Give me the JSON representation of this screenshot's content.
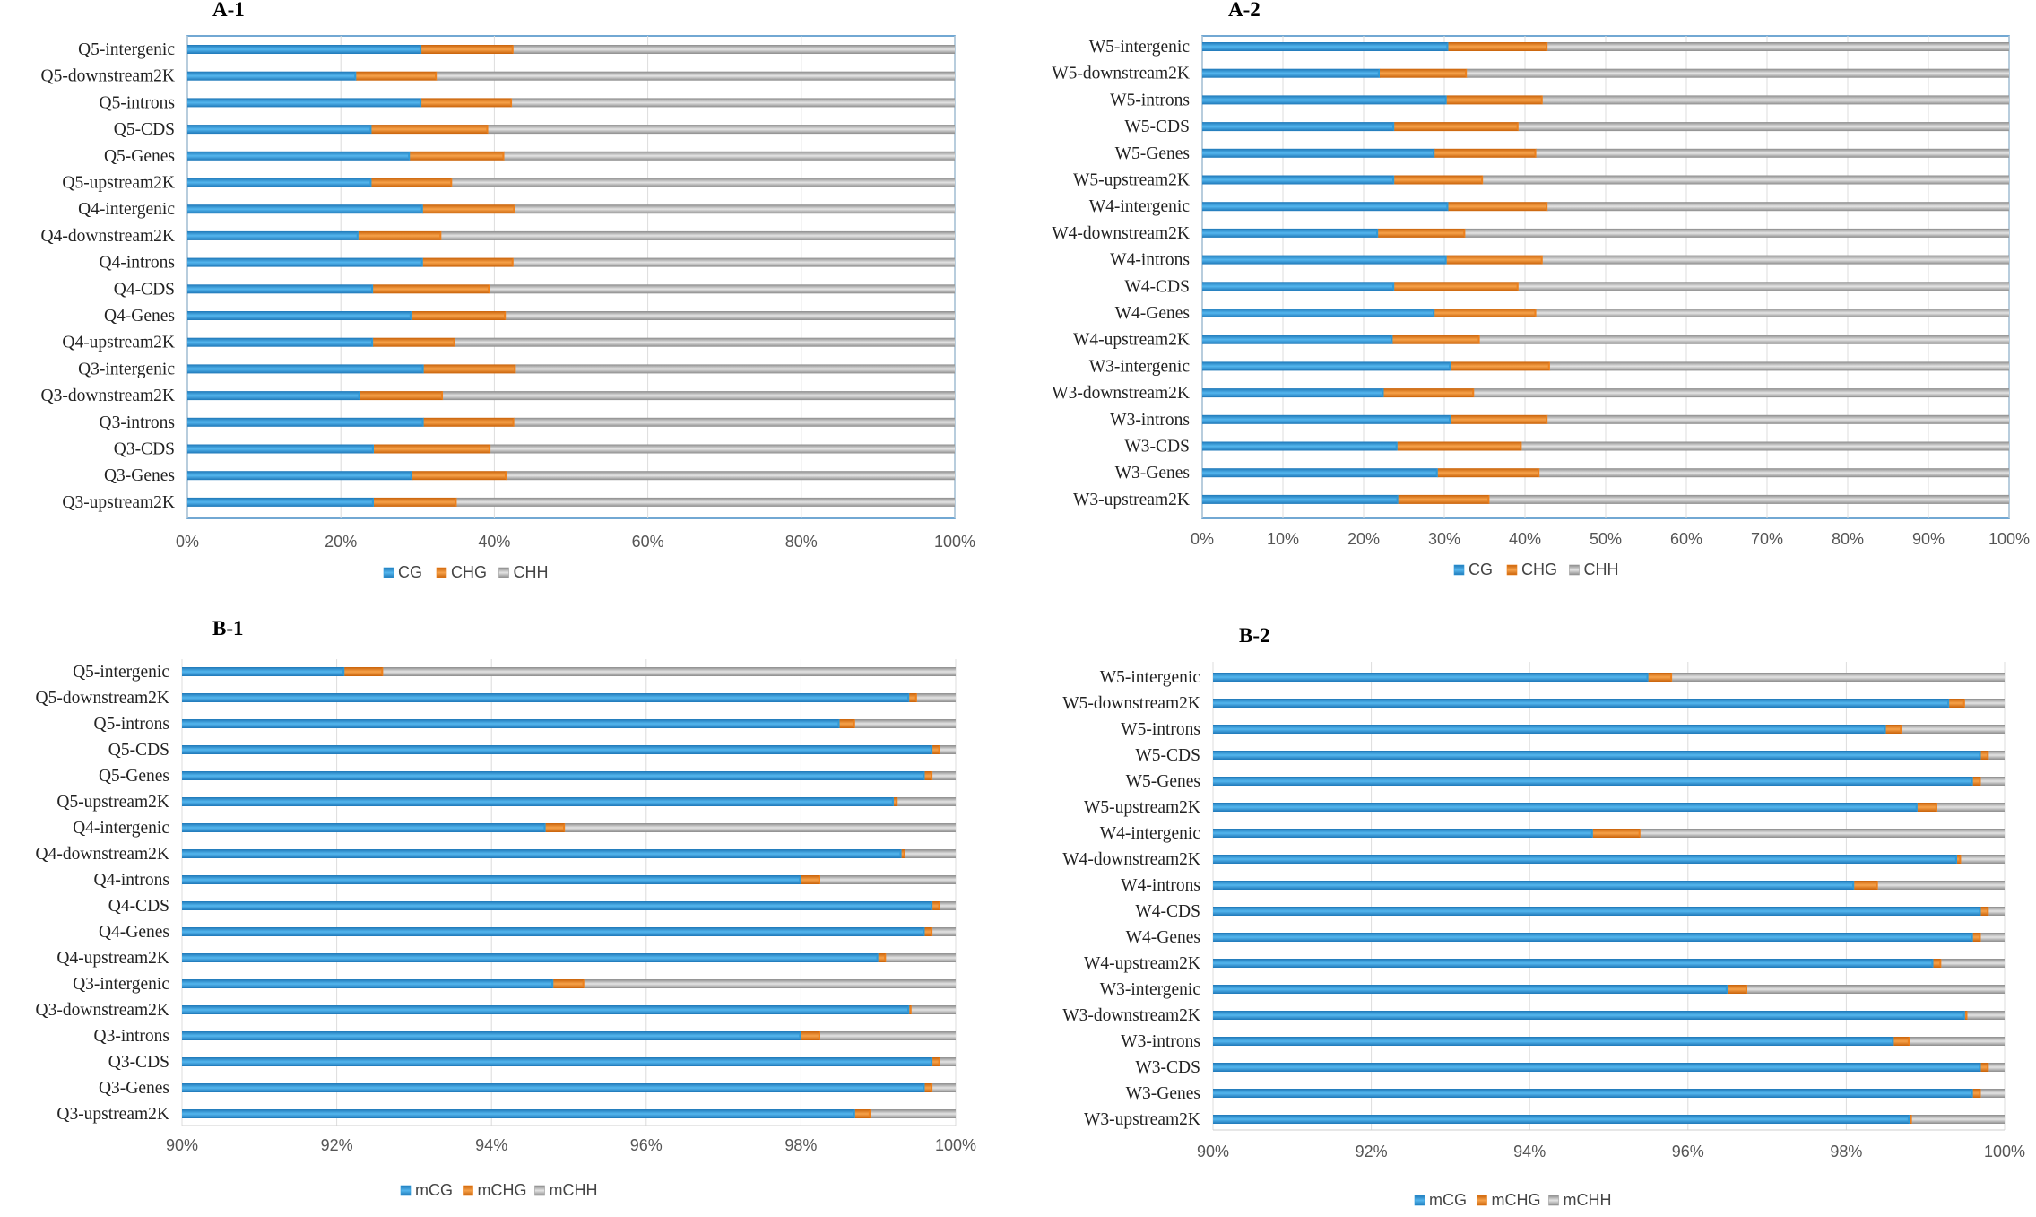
{
  "colors": {
    "cg": "#2e9ad9",
    "chg": "#ee8019",
    "chh": "#9a9a9a",
    "frame": "#4f93c8",
    "grid": "#dcdcdc"
  },
  "panels": [
    {
      "title": "A-1"
    },
    {
      "title": "A-2"
    },
    {
      "title": "B-1"
    },
    {
      "title": "B-2"
    }
  ],
  "chart_data": [
    {
      "id": "A-1",
      "type": "bar",
      "orientation": "horizontal",
      "stacked": "percent",
      "title": "A-1",
      "xlim": [
        0,
        100
      ],
      "xticks": [
        0,
        20,
        40,
        60,
        80,
        100
      ],
      "xtick_labels": [
        "0%",
        "20%",
        "40%",
        "60%",
        "80%",
        "100%"
      ],
      "categories": [
        "Q5-intergenic",
        "Q5-downstream2K",
        "Q5-introns",
        "Q5-CDS",
        "Q5-Genes",
        "Q5-upstream2K",
        "Q4-intergenic",
        "Q4-downstream2K",
        "Q4-introns",
        "Q4-CDS",
        "Q4-Genes",
        "Q4-upstream2K",
        "Q3-intergenic",
        "Q3-downstream2K",
        "Q3-introns",
        "Q3-CDS",
        "Q3-Genes",
        "Q3-upstream2K"
      ],
      "series": [
        {
          "name": "CG",
          "values": [
            30.5,
            22,
            30.5,
            24,
            29,
            24,
            30.7,
            22.3,
            30.7,
            24.2,
            29.2,
            24.2,
            30.8,
            22.5,
            30.8,
            24.3,
            29.3,
            24.3
          ]
        },
        {
          "name": "CHG",
          "values": [
            12,
            10.5,
            11.8,
            15.2,
            12.3,
            10.5,
            12,
            10.8,
            11.8,
            15.2,
            12.3,
            10.7,
            12,
            10.8,
            11.8,
            15.2,
            12.3,
            10.8
          ]
        },
        {
          "name": "CHH",
          "values": [
            57.5,
            67.5,
            57.7,
            60.8,
            58.7,
            65.5,
            57.3,
            66.9,
            57.5,
            60.6,
            58.5,
            65.1,
            57.2,
            66.7,
            57.4,
            60.5,
            58.4,
            64.9
          ]
        }
      ],
      "legend": [
        "CG",
        "CHG",
        "CHH"
      ],
      "legend_position": "bottom"
    },
    {
      "id": "A-2",
      "type": "bar",
      "orientation": "horizontal",
      "stacked": "percent",
      "title": "A-2",
      "xlim": [
        0,
        100
      ],
      "xticks": [
        0,
        10,
        20,
        30,
        40,
        50,
        60,
        70,
        80,
        90,
        100
      ],
      "xtick_labels": [
        "0%",
        "10%",
        "20%",
        "30%",
        "40%",
        "50%",
        "60%",
        "70%",
        "80%",
        "90%",
        "100%"
      ],
      "categories": [
        "W5-intergenic",
        "W5-downstream2K",
        "W5-introns",
        "W5-CDS",
        "W5-Genes",
        "W5-upstream2K",
        "W4-intergenic",
        "W4-downstream2K",
        "W4-introns",
        "W4-CDS",
        "W4-Genes",
        "W4-upstream2K",
        "W3-intergenic",
        "W3-downstream2K",
        "W3-introns",
        "W3-CDS",
        "W3-Genes",
        "W3-upstream2K"
      ],
      "series": [
        {
          "name": "CG",
          "values": [
            30.5,
            22,
            30.3,
            23.8,
            28.8,
            23.8,
            30.5,
            21.8,
            30.3,
            23.8,
            28.8,
            23.6,
            30.8,
            22.5,
            30.8,
            24.2,
            29.2,
            24.3
          ]
        },
        {
          "name": "CHG",
          "values": [
            12.3,
            10.8,
            11.9,
            15.4,
            12.6,
            11,
            12.3,
            10.8,
            11.9,
            15.4,
            12.6,
            10.8,
            12.3,
            11.2,
            12,
            15.4,
            12.6,
            11.3
          ]
        },
        {
          "name": "CHH",
          "values": [
            57.2,
            67.2,
            57.8,
            60.8,
            58.6,
            65.2,
            57.2,
            67.4,
            57.8,
            60.8,
            58.6,
            65.6,
            56.9,
            66.3,
            57.2,
            60.4,
            58.2,
            64.4
          ]
        }
      ],
      "legend": [
        "CG",
        "CHG",
        "CHH"
      ],
      "legend_position": "bottom"
    },
    {
      "id": "B-1",
      "type": "bar",
      "orientation": "horizontal",
      "stacked": "percent",
      "title": "B-1",
      "xlim": [
        90,
        100
      ],
      "xticks": [
        90,
        92,
        94,
        96,
        98,
        100
      ],
      "xtick_labels": [
        "90%",
        "92%",
        "94%",
        "96%",
        "98%",
        "100%"
      ],
      "categories": [
        "Q5-intergenic",
        "Q5-downstream2K",
        "Q5-introns",
        "Q5-CDS",
        "Q5-Genes",
        "Q5-upstream2K",
        "Q4-intergenic",
        "Q4-downstream2K",
        "Q4-introns",
        "Q4-CDS",
        "Q4-Genes",
        "Q4-upstream2K",
        "Q3-intergenic",
        "Q3-downstream2K",
        "Q3-introns",
        "Q3-CDS",
        "Q3-Genes",
        "Q3-upstream2K"
      ],
      "series": [
        {
          "name": "mCG",
          "values": [
            92.1,
            99.4,
            98.5,
            99.7,
            99.6,
            99.2,
            94.7,
            99.3,
            98.0,
            99.7,
            99.6,
            99.0,
            94.8,
            99.4,
            98.0,
            99.7,
            99.6,
            98.7
          ]
        },
        {
          "name": "mCHG",
          "values": [
            0.5,
            0.1,
            0.2,
            0.1,
            0.1,
            0.05,
            0.25,
            0.05,
            0.25,
            0.1,
            0.1,
            0.1,
            0.4,
            0.03,
            0.25,
            0.1,
            0.1,
            0.2
          ]
        },
        {
          "name": "mCHH",
          "values": [
            7.4,
            0.5,
            1.3,
            0.2,
            0.3,
            0.75,
            5.05,
            0.65,
            1.75,
            0.2,
            0.3,
            0.9,
            4.8,
            0.57,
            1.75,
            0.2,
            0.3,
            1.1
          ]
        }
      ],
      "legend": [
        "mCG",
        "mCHG",
        "mCHH"
      ],
      "legend_position": "bottom"
    },
    {
      "id": "B-2",
      "type": "bar",
      "orientation": "horizontal",
      "stacked": "percent",
      "title": "B-2",
      "xlim": [
        90,
        100
      ],
      "xticks": [
        90,
        92,
        94,
        96,
        98,
        100
      ],
      "xtick_labels": [
        "90%",
        "92%",
        "94%",
        "96%",
        "98%",
        "100%"
      ],
      "categories": [
        "W5-intergenic",
        "W5-downstream2K",
        "W5-introns",
        "W5-CDS",
        "W5-Genes",
        "W5-upstream2K",
        "W4-intergenic",
        "W4-downstream2K",
        "W4-introns",
        "W4-CDS",
        "W4-Genes",
        "W4-upstream2K",
        "W3-intergenic",
        "W3-downstream2K",
        "W3-introns",
        "W3-CDS",
        "W3-Genes",
        "W3-upstream2K"
      ],
      "series": [
        {
          "name": "mCG",
          "values": [
            95.5,
            99.3,
            98.5,
            99.7,
            99.6,
            98.9,
            94.8,
            99.4,
            98.1,
            99.7,
            99.6,
            99.1,
            96.5,
            99.5,
            98.6,
            99.7,
            99.6,
            98.8
          ]
        },
        {
          "name": "mCHG",
          "values": [
            0.3,
            0.2,
            0.2,
            0.1,
            0.1,
            0.25,
            0.6,
            0.05,
            0.3,
            0.1,
            0.1,
            0.1,
            0.25,
            0.03,
            0.2,
            0.1,
            0.1,
            0.03
          ]
        },
        {
          "name": "mCHH",
          "values": [
            4.2,
            0.5,
            1.3,
            0.2,
            0.3,
            0.85,
            4.6,
            0.55,
            1.6,
            0.2,
            0.3,
            0.8,
            3.25,
            0.47,
            1.2,
            0.2,
            0.3,
            1.17
          ]
        }
      ],
      "legend": [
        "mCG",
        "mCHG",
        "mCHH"
      ],
      "legend_position": "bottom"
    }
  ]
}
